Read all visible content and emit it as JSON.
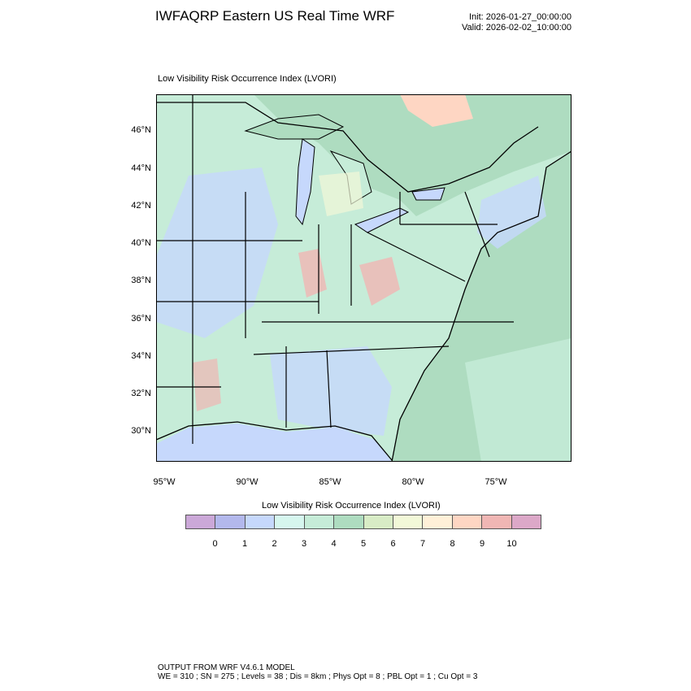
{
  "header": {
    "title": "IWFAQRP Eastern US Real Time WRF",
    "init": "Init: 2026-01-27_00:00:00",
    "valid": "Valid: 2026-02-02_10:00:00"
  },
  "plot": {
    "subtitle": "Low Visibility Risk Occurrence Index   (LVORI)",
    "lat_labels": [
      "46°N",
      "44°N",
      "42°N",
      "40°N",
      "38°N",
      "36°N",
      "34°N",
      "32°N",
      "30°N"
    ],
    "lon_labels": [
      "95°W",
      "90°W",
      "85°W",
      "80°W",
      "75°W"
    ]
  },
  "colorbar": {
    "title": "Low Visibility Risk Occurrence Index  (LVORI)",
    "labels": [
      "0",
      "1",
      "2",
      "3",
      "4",
      "5",
      "6",
      "7",
      "8",
      "9",
      "10"
    ],
    "colors": [
      "#cba8d8",
      "#b3b8ec",
      "#c6d8fc",
      "#d6f6ee",
      "#c6ecd8",
      "#aedcc0",
      "#d8ecc6",
      "#f2f8d8",
      "#fff0d8",
      "#fed6c3",
      "#f0b6b4",
      "#dca8c8"
    ]
  },
  "footer": {
    "line1": "OUTPUT FROM WRF V4.6.1 MODEL",
    "line2": "WE = 310 ; SN = 275 ; Levels = 38 ; Dis = 8km ; Phys Opt = 8 ; PBL Opt = 1 ; Cu Opt = 3"
  }
}
